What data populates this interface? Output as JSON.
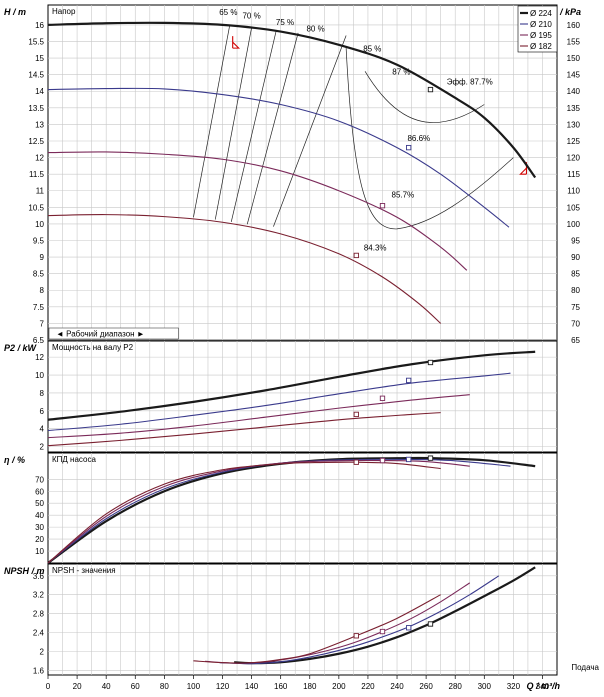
{
  "chart_data": [
    {
      "type": "line",
      "title": "Напор",
      "ylabel": "H / m",
      "ylabel_right": "Δp / kPa",
      "xlim": [
        0,
        350
      ],
      "ylim": [
        6.5,
        16.6
      ],
      "yticks": [
        "6.5",
        "7",
        "7.5",
        "8",
        "8.5",
        "9",
        "9.5",
        "10",
        "10.5",
        "11",
        "11.5",
        "12",
        "12.5",
        "13",
        "13.5",
        "14",
        "14.5",
        "15",
        "15.5",
        "16"
      ],
      "yticks_right": [
        "65",
        "70",
        "75",
        "80",
        "85",
        "90",
        "95",
        "100",
        "105",
        "110",
        "115",
        "120",
        "125",
        "130",
        "135",
        "140",
        "145",
        "150",
        "155",
        "160"
      ],
      "legend_position": "top-right",
      "series": [
        {
          "name": "Ø 224",
          "color": "#1a1a1a",
          "x": [
            0,
            40,
            80,
            120,
            160,
            200,
            240,
            280,
            300,
            320,
            335
          ],
          "y": [
            16.0,
            16.05,
            16.06,
            16.0,
            15.8,
            15.4,
            14.8,
            13.8,
            13.2,
            12.3,
            11.4
          ]
        },
        {
          "name": "Ø 210",
          "color": "#3a3a8c",
          "x": [
            0,
            40,
            80,
            120,
            160,
            200,
            240,
            270,
            300,
            317
          ],
          "y": [
            14.05,
            14.08,
            14.07,
            13.9,
            13.6,
            13.1,
            12.3,
            11.5,
            10.5,
            9.9
          ]
        },
        {
          "name": "Ø 195",
          "color": "#7b2a5a",
          "x": [
            0,
            40,
            80,
            120,
            160,
            200,
            240,
            270,
            288
          ],
          "y": [
            12.15,
            12.17,
            12.1,
            11.95,
            11.6,
            11.0,
            10.2,
            9.3,
            8.6
          ]
        },
        {
          "name": "Ø 182",
          "color": "#7a2030",
          "x": [
            0,
            40,
            80,
            120,
            160,
            200,
            230,
            255,
            270
          ],
          "y": [
            10.25,
            10.28,
            10.22,
            10.05,
            9.7,
            9.1,
            8.4,
            7.6,
            7.0
          ]
        }
      ],
      "efficiency_labels": [
        "65 %",
        "70 %",
        "75 %",
        "80 %",
        "85 %",
        "87 %",
        "Эфф. 87.7%",
        "86.6%",
        "85.7%",
        "84.3%"
      ],
      "op_points": [
        {
          "x": 263,
          "y": 14.05
        },
        {
          "x": 248,
          "y": 12.3
        },
        {
          "x": 230,
          "y": 10.55
        },
        {
          "x": 212,
          "y": 9.05
        }
      ],
      "range_label": "◄ Рабочий диапазон ►"
    },
    {
      "type": "line",
      "title": "Мощность на валу P2",
      "ylabel": "P2 / kW",
      "ylim": [
        1.4,
        13.8
      ],
      "yticks": [
        "2",
        "4",
        "6",
        "8",
        "10",
        "12"
      ],
      "series": [
        {
          "name": "Ø 224",
          "x": [
            0,
            50,
            100,
            150,
            200,
            250,
            300,
            335
          ],
          "y": [
            5.0,
            5.9,
            7.0,
            8.3,
            9.8,
            11.2,
            12.2,
            12.6
          ]
        },
        {
          "name": "Ø 210",
          "x": [
            0,
            50,
            100,
            150,
            200,
            250,
            300,
            318
          ],
          "y": [
            3.8,
            4.5,
            5.5,
            6.6,
            7.9,
            9.1,
            9.9,
            10.2
          ]
        },
        {
          "name": "Ø 195",
          "x": [
            0,
            50,
            100,
            150,
            200,
            250,
            290
          ],
          "y": [
            3.0,
            3.5,
            4.3,
            5.3,
            6.3,
            7.2,
            7.8
          ]
        },
        {
          "name": "Ø 182",
          "x": [
            0,
            50,
            100,
            150,
            200,
            250,
            270
          ],
          "y": [
            2.1,
            2.7,
            3.4,
            4.2,
            5.0,
            5.6,
            5.8
          ]
        }
      ],
      "op_points": [
        {
          "x": 263,
          "y": 11.4
        },
        {
          "x": 248,
          "y": 9.4
        },
        {
          "x": 230,
          "y": 7.4
        },
        {
          "x": 212,
          "y": 5.6
        }
      ]
    },
    {
      "type": "line",
      "title": "КПД насоса",
      "ylabel": "η / %",
      "ylim": [
        0,
        92
      ],
      "yticks": [
        "10",
        "20",
        "30",
        "40",
        "50",
        "60",
        "70"
      ],
      "series": [
        {
          "name": "Ø 224",
          "x": [
            0,
            40,
            80,
            120,
            160,
            200,
            240,
            263,
            300,
            335
          ],
          "y": [
            0,
            35,
            60,
            75,
            83,
            86.8,
            87.6,
            87.7,
            86,
            81
          ]
        },
        {
          "name": "Ø 210",
          "x": [
            0,
            40,
            80,
            120,
            160,
            200,
            248,
            280,
            318
          ],
          "y": [
            0,
            37,
            62,
            76,
            83.5,
            86.2,
            86.6,
            85.5,
            81
          ]
        },
        {
          "name": "Ø 195",
          "x": [
            0,
            40,
            80,
            120,
            160,
            200,
            230,
            260,
            290
          ],
          "y": [
            0,
            39,
            64,
            77,
            83.5,
            85.5,
            85.7,
            84.8,
            81
          ]
        },
        {
          "name": "Ø 182",
          "x": [
            0,
            40,
            80,
            120,
            160,
            190,
            212,
            240,
            270
          ],
          "y": [
            0,
            41,
            66,
            78,
            83,
            84.1,
            84.3,
            83.2,
            79
          ]
        }
      ],
      "op_points": [
        {
          "x": 263,
          "y": 87.7
        },
        {
          "x": 248,
          "y": 86.6
        },
        {
          "x": 230,
          "y": 85.7
        },
        {
          "x": 212,
          "y": 84.3
        }
      ]
    },
    {
      "type": "line",
      "title": "NPSH - значения",
      "ylabel": "NPSH / m",
      "xlabel": "Подача",
      "xunit": "Q / m³/h",
      "xticks": [
        "0",
        "20",
        "40",
        "60",
        "80",
        "100",
        "120",
        "140",
        "160",
        "180",
        "200",
        "220",
        "240",
        "260",
        "280",
        "300",
        "320",
        "340"
      ],
      "ylim": [
        1.5,
        3.85
      ],
      "yticks": [
        "1.6",
        "2",
        "2.4",
        "2.8",
        "3.2",
        "3.6"
      ],
      "series": [
        {
          "name": "Ø 224",
          "x": [
            128,
            140,
            160,
            180,
            200,
            220,
            240,
            260,
            280,
            300,
            320,
            335
          ],
          "y": [
            1.77,
            1.75,
            1.77,
            1.84,
            1.95,
            2.1,
            2.3,
            2.55,
            2.85,
            3.17,
            3.5,
            3.78
          ]
        },
        {
          "name": "Ø 210",
          "x": [
            118,
            140,
            160,
            180,
            200,
            220,
            248,
            270,
            290,
            310
          ],
          "y": [
            1.76,
            1.74,
            1.78,
            1.88,
            2.02,
            2.2,
            2.52,
            2.85,
            3.2,
            3.6
          ]
        },
        {
          "name": "Ø 195",
          "x": [
            108,
            130,
            150,
            170,
            190,
            210,
            230,
            250,
            270,
            290
          ],
          "y": [
            1.79,
            1.75,
            1.78,
            1.87,
            2.0,
            2.18,
            2.42,
            2.7,
            3.05,
            3.45
          ]
        },
        {
          "name": "Ø 182",
          "x": [
            100,
            120,
            140,
            160,
            180,
            212,
            240,
            270
          ],
          "y": [
            1.8,
            1.76,
            1.76,
            1.83,
            1.95,
            2.33,
            2.7,
            3.2
          ]
        }
      ],
      "op_points": [
        {
          "x": 263,
          "y": 2.58
        },
        {
          "x": 248,
          "y": 2.5
        },
        {
          "x": 230,
          "y": 2.42
        },
        {
          "x": 212,
          "y": 2.33
        }
      ]
    }
  ]
}
